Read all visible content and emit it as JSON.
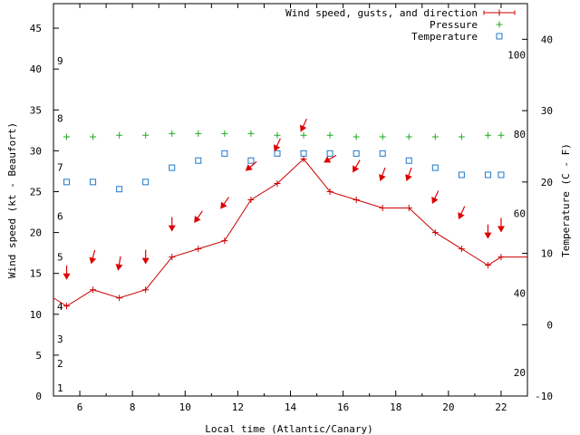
{
  "chart_data": {
    "type": "line",
    "title": "",
    "xlabel": "Local time (Atlantic/Canary)",
    "ylabel": "Wind speed (kt - Beaufort)",
    "y2label": "Temperature (C - F)",
    "xlim": [
      5,
      23
    ],
    "ylim": [
      0,
      48
    ],
    "y2lim": [
      -10,
      45
    ],
    "x_ticks": [
      6,
      8,
      10,
      12,
      14,
      16,
      18,
      20,
      22
    ],
    "y_ticks": [
      0,
      5,
      10,
      15,
      20,
      25,
      30,
      35,
      40,
      45
    ],
    "y2_ticks": [
      -10,
      0,
      10,
      20,
      30,
      40
    ],
    "beaufort_labels": [
      {
        "kt": 1,
        "label": "1"
      },
      {
        "kt": 4,
        "label": "2"
      },
      {
        "kt": 7,
        "label": "3"
      },
      {
        "kt": 11,
        "label": "4"
      },
      {
        "kt": 17,
        "label": "5"
      },
      {
        "kt": 22,
        "label": "6"
      },
      {
        "kt": 28,
        "label": "7"
      },
      {
        "kt": 34,
        "label": "8"
      },
      {
        "kt": 41,
        "label": "9"
      }
    ],
    "fahrenheit_labels": [
      {
        "c": -6.7,
        "label": "20"
      },
      {
        "c": 4.4,
        "label": "40"
      },
      {
        "c": 15.6,
        "label": "60"
      },
      {
        "c": 26.7,
        "label": "80"
      },
      {
        "c": 37.8,
        "label": "100"
      }
    ],
    "legend": [
      {
        "name": "Wind speed, gusts, and direction",
        "color": "#cc0000",
        "marker": "line-plus"
      },
      {
        "name": "Pressure",
        "color": "#22aa22",
        "marker": "plus"
      },
      {
        "name": "Temperature",
        "color": "#1f78c8",
        "marker": "square"
      }
    ],
    "legend_position": "top-right",
    "series": [
      {
        "name": "Wind speed, gusts, and direction",
        "axis": "y",
        "x": [
          5,
          5.5,
          6.5,
          7.5,
          8.5,
          9.5,
          10.5,
          11.5,
          12.5,
          13.5,
          14.5,
          15.5,
          16.5,
          17.5,
          18.5,
          19.5,
          20.5,
          21.5,
          22,
          23
        ],
        "values": [
          12,
          11,
          13,
          12,
          13,
          17,
          18,
          19,
          24,
          26,
          29,
          25,
          24,
          23,
          23,
          20,
          18,
          16,
          17,
          17
        ],
        "markers_x": [
          5.5,
          6.5,
          7.5,
          8.5,
          9.5,
          10.5,
          11.5,
          12.5,
          13.5,
          14.5,
          15.5,
          16.5,
          17.5,
          18.5,
          19.5,
          20.5,
          21.5,
          22
        ]
      },
      {
        "name": "Pressure",
        "axis": "y",
        "x": [
          5.5,
          6.5,
          7.5,
          8.5,
          9.5,
          10.5,
          11.5,
          12.5,
          13.5,
          14.5,
          15.5,
          16.5,
          17.5,
          18.5,
          19.5,
          20.5,
          21.5,
          22
        ],
        "values": [
          31.7,
          31.7,
          31.9,
          31.9,
          32.1,
          32.1,
          32.1,
          32.1,
          31.9,
          31.9,
          31.9,
          31.7,
          31.7,
          31.7,
          31.7,
          31.7,
          31.9,
          31.9
        ]
      },
      {
        "name": "Temperature",
        "axis": "y2",
        "x": [
          5.5,
          6.5,
          7.5,
          8.5,
          9.5,
          10.5,
          11.5,
          12.5,
          13.5,
          14.5,
          15.5,
          16.5,
          17.5,
          18.5,
          19.5,
          20.5,
          21.5,
          22
        ],
        "values": [
          20,
          20,
          19,
          20,
          22,
          23,
          24,
          23,
          24,
          24,
          24,
          24,
          24,
          23,
          22,
          21,
          21,
          21
        ]
      }
    ],
    "wind_direction_arrows": [
      {
        "x": 5.5,
        "kt": 15.1,
        "angle": 0
      },
      {
        "x": 6.5,
        "kt": 17.0,
        "angle": 15
      },
      {
        "x": 7.5,
        "kt": 16.2,
        "angle": 10
      },
      {
        "x": 8.5,
        "kt": 17.0,
        "angle": 0
      },
      {
        "x": 9.5,
        "kt": 21.0,
        "angle": 0
      },
      {
        "x": 10.5,
        "kt": 21.9,
        "angle": 35
      },
      {
        "x": 11.5,
        "kt": 23.6,
        "angle": 35
      },
      {
        "x": 12.5,
        "kt": 28.1,
        "angle": 50
      },
      {
        "x": 13.5,
        "kt": 30.7,
        "angle": 25
      },
      {
        "x": 14.5,
        "kt": 33.1,
        "angle": 25
      },
      {
        "x": 15.5,
        "kt": 29.0,
        "angle": 60
      },
      {
        "x": 16.5,
        "kt": 28.1,
        "angle": 30
      },
      {
        "x": 17.5,
        "kt": 27.1,
        "angle": 20
      },
      {
        "x": 18.5,
        "kt": 27.1,
        "angle": 20
      },
      {
        "x": 19.5,
        "kt": 24.3,
        "angle": 25
      },
      {
        "x": 20.5,
        "kt": 22.4,
        "angle": 25
      },
      {
        "x": 21.5,
        "kt": 20.1,
        "angle": 0
      },
      {
        "x": 22,
        "kt": 20.9,
        "angle": 0
      }
    ],
    "grid": false
  }
}
